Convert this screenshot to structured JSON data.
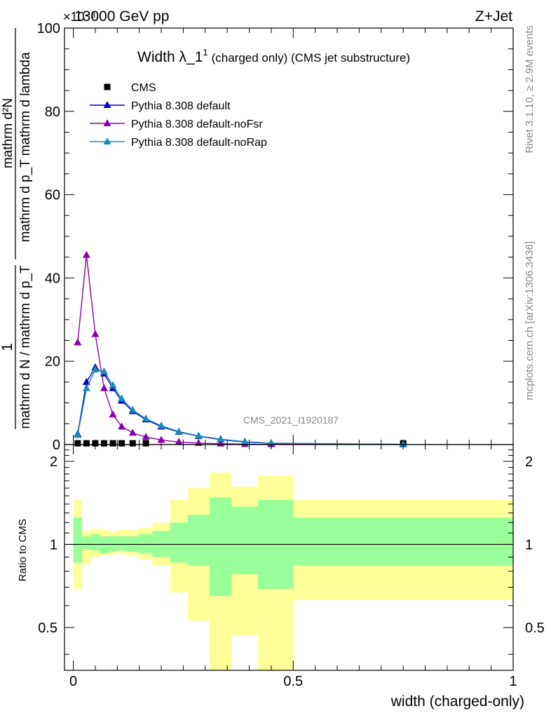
{
  "header": {
    "left": "13000 GeV pp",
    "right": "Z+Jet",
    "exponent": "×10⁻³"
  },
  "side_labels": {
    "rivet": "Rivet 3.1.10, ≥ 2.9M events",
    "mcplots": "mcplots.cern.ch [arXiv:1306.3436]"
  },
  "watermark": "CMS_2021_I1920187",
  "colors": {
    "cms": "#000000",
    "default": "#0000cc",
    "noFsr": "#8a00b0",
    "noRap": "#1a8ab8",
    "band_inner": "#99ff99",
    "band_outer": "#ffff99"
  },
  "chart_data": [
    {
      "type": "line",
      "title": "Width λ_1¹ (charged only) (CMS jet substructure)",
      "title_main": "Width λ_1",
      "title_sup": "1",
      "title_rest": "(charged only) (CMS jet substructure)",
      "ylabel": "1 / (mathrm d N / mathrm d p_T) · mathrm d²N / (mathrm d p_T mathrm d lambda)",
      "ylabel_num": "mathrm d²N",
      "ylabel_den": "mathrm d p_T mathrm d lambda",
      "ylabel_pre_num": "1",
      "ylabel_pre_den": "mathrm d N / mathrm d p_T",
      "yscale_exponent": -3,
      "xlim": [
        -0.02,
        1.0
      ],
      "ylim": [
        0,
        100
      ],
      "yticks": [
        0,
        20,
        40,
        60,
        80,
        100
      ],
      "legend": [
        "CMS",
        "Pythia 8.308 default",
        "Pythia 8.308 default-noFsr",
        "Pythia 8.308 default-noRap"
      ],
      "legend_position": "top-left",
      "series": [
        {
          "name": "CMS",
          "marker": "square",
          "x": [
            0.01,
            0.03,
            0.05,
            0.07,
            0.09,
            0.11,
            0.135,
            0.165,
            0.75
          ],
          "y": [
            0.3,
            0.3,
            0.3,
            0.3,
            0.3,
            0.3,
            0.3,
            0.3,
            0.3
          ]
        },
        {
          "name": "Pythia 8.308 default",
          "marker": "triangle",
          "x": [
            0.01,
            0.03,
            0.05,
            0.07,
            0.09,
            0.11,
            0.135,
            0.165,
            0.2,
            0.24,
            0.285,
            0.335,
            0.39,
            0.45,
            0.75
          ],
          "y": [
            2.5,
            15.0,
            18.5,
            17.0,
            13.5,
            10.5,
            8.0,
            6.0,
            4.3,
            3.0,
            2.0,
            1.2,
            0.6,
            0.3,
            0.05
          ]
        },
        {
          "name": "Pythia 8.308 default-noFsr",
          "marker": "triangle",
          "x": [
            0.01,
            0.03,
            0.05,
            0.07,
            0.09,
            0.11,
            0.135,
            0.165,
            0.2,
            0.24,
            0.285,
            0.335,
            0.39,
            0.45,
            0.75
          ],
          "y": [
            24.5,
            45.5,
            26.5,
            13.5,
            7.2,
            4.3,
            2.8,
            1.8,
            1.1,
            0.6,
            0.35,
            0.2,
            0.1,
            0.05,
            0.01
          ]
        },
        {
          "name": "Pythia 8.308 default-noRap",
          "marker": "triangle",
          "x": [
            0.01,
            0.03,
            0.05,
            0.07,
            0.09,
            0.11,
            0.135,
            0.165,
            0.2,
            0.24,
            0.285,
            0.335,
            0.39,
            0.45,
            0.75
          ],
          "y": [
            2.3,
            13.5,
            18.0,
            17.5,
            14.2,
            11.0,
            8.3,
            6.2,
            4.5,
            3.1,
            2.1,
            1.3,
            0.7,
            0.35,
            0.05
          ]
        }
      ]
    },
    {
      "type": "area",
      "ylabel": "Ratio to CMS",
      "xlabel": "width (charged-only)",
      "xlim": [
        -0.02,
        1.0
      ],
      "ylim": [
        0.35,
        2.3
      ],
      "yticks": [
        0.5,
        1,
        2
      ],
      "xticks": [
        0,
        0.5,
        1
      ],
      "reference_line": 1,
      "bins": [
        0,
        0.02,
        0.04,
        0.06,
        0.08,
        0.1,
        0.12,
        0.15,
        0.18,
        0.22,
        0.26,
        0.31,
        0.36,
        0.42,
        0.5,
        1.0
      ],
      "inner_band": {
        "name": "stat",
        "lower": [
          0.86,
          0.96,
          0.95,
          0.93,
          0.94,
          0.95,
          0.94,
          0.93,
          0.9,
          0.86,
          0.84,
          0.65,
          0.78,
          0.69,
          0.84
        ],
        "upper": [
          1.25,
          1.07,
          1.09,
          1.07,
          1.07,
          1.07,
          1.07,
          1.09,
          1.12,
          1.2,
          1.28,
          1.48,
          1.37,
          1.45,
          1.25
        ]
      },
      "outer_band": {
        "name": "total",
        "lower": [
          0.69,
          0.85,
          0.9,
          0.91,
          0.92,
          0.93,
          0.91,
          0.88,
          0.84,
          0.67,
          0.53,
          0.34,
          0.47,
          0.34,
          0.63
        ],
        "upper": [
          1.45,
          1.12,
          1.14,
          1.13,
          1.11,
          1.13,
          1.13,
          1.15,
          1.2,
          1.45,
          1.6,
          1.82,
          1.62,
          1.77,
          1.45
        ]
      }
    }
  ]
}
